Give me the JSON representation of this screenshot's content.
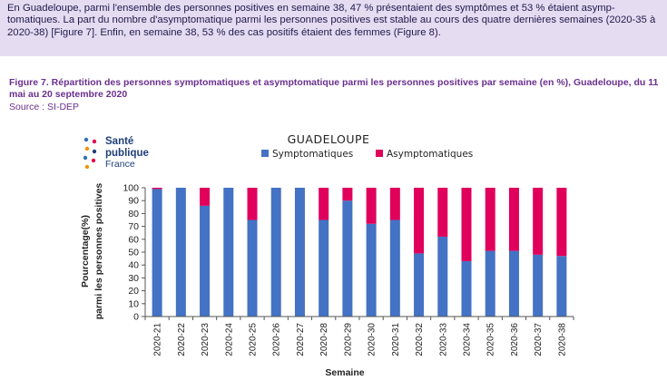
{
  "intro": {
    "text": "En Guadeloupe, parmi l'ensemble des personnes positives en semaine 38, 47 % présentaient des symptômes et 53 % étaient asymp-tomatiques. La part du nombre d'asymptomatique parmi les personnes positives est stable au cours des quatre dernières semaines (2020-35 à 2020-38) [Figure 7]. Enfin, en semaine 38, 53 % des cas positifs étaient des femmes (Figure 8)."
  },
  "figure": {
    "title": "Figure 7. Répartition des personnes symptomatiques et asymptomatique parmi les personnes positives par semaine (en %), Guadeloupe, du 11 mai au 20 septembre 2020",
    "source": "Source : SI-DEP"
  },
  "logo": {
    "line1": "Santé",
    "line2": "publique",
    "line3": "France",
    "dot_colors": [
      "#2f6fb7",
      "#e3004f",
      "#f39200",
      "#1f3f7a"
    ]
  },
  "chart_data": {
    "type": "bar",
    "stacked": true,
    "title": "GUADELOUPE",
    "xlabel": "Semaine",
    "ylabel_line1": "Pourcentage(%)",
    "ylabel_line2": "parmi les personnes positives",
    "ylim": [
      0,
      100
    ],
    "yticks": [
      0,
      10,
      20,
      30,
      40,
      50,
      60,
      70,
      80,
      90,
      100
    ],
    "legend_position": "top",
    "categories": [
      "2020-21",
      "2020-22",
      "2020-23",
      "2020-24",
      "2020-25",
      "2020-26",
      "2020-27",
      "2020-28",
      "2020-29",
      "2020-30",
      "2020-31",
      "2020-32",
      "2020-33",
      "2020-34",
      "2020-35",
      "2020-36",
      "2020-37",
      "2020-38"
    ],
    "series": [
      {
        "name": "Symptomatiques",
        "color": "#4472c4",
        "values": [
          99,
          100,
          86,
          100,
          75,
          100,
          100,
          75,
          90,
          72,
          75,
          49,
          62,
          43,
          51,
          51,
          48,
          47
        ]
      },
      {
        "name": "Asymptomatiques",
        "color": "#e0005c",
        "values": [
          1,
          0,
          14,
          0,
          25,
          0,
          0,
          25,
          10,
          28,
          25,
          51,
          38,
          57,
          49,
          49,
          52,
          53
        ]
      }
    ]
  }
}
